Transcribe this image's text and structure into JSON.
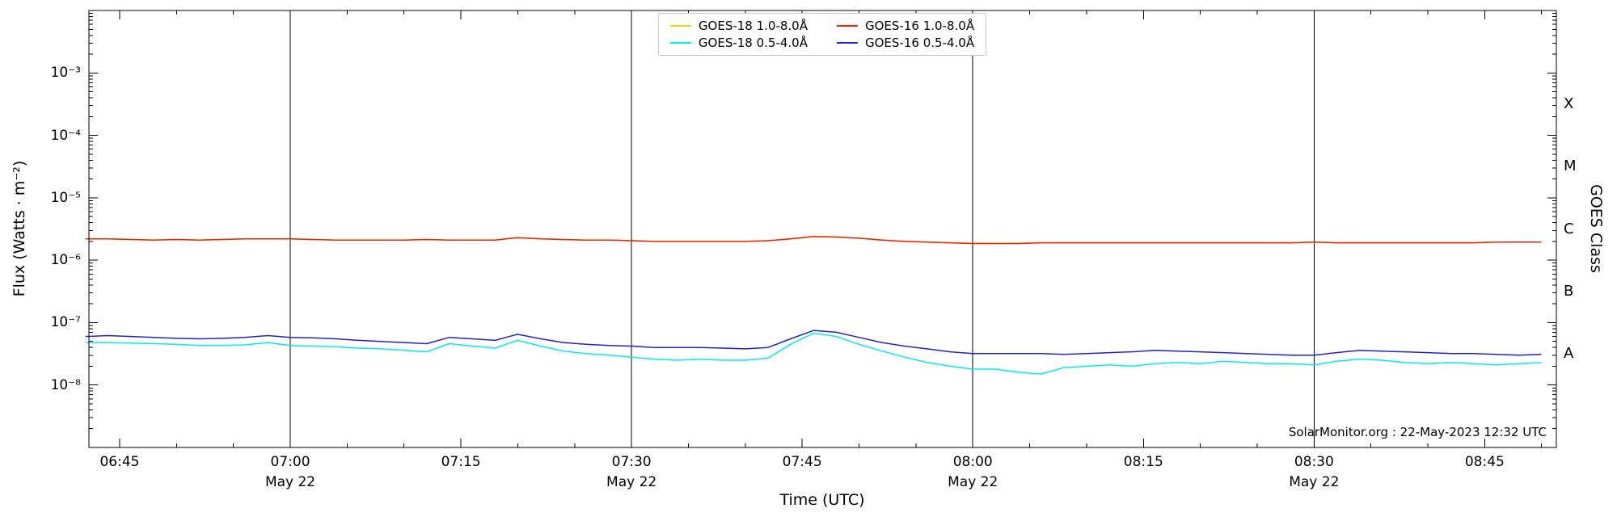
{
  "chart_data": {
    "type": "line",
    "title": "",
    "xlabel": "Time (UTC)",
    "ylabel": "Flux (Watts · m⁻²)",
    "y2label": "GOES Class",
    "annotation": "SolarMonitor.org : 22-May-2023 12:32 UTC",
    "background": "#ffffff",
    "axis_color": "#000000",
    "grid": "vertical-date-lines-only",
    "legend_position": "top-center",
    "xlim": [
      6.705,
      8.855
    ],
    "ylim_log10": [
      -9,
      -2
    ],
    "x_major_ticks": [
      {
        "hour": 6.75,
        "label": "06:45"
      },
      {
        "hour": 7.0,
        "label": "07:00"
      },
      {
        "hour": 7.25,
        "label": "07:15"
      },
      {
        "hour": 7.5,
        "label": "07:30"
      },
      {
        "hour": 7.75,
        "label": "07:45"
      },
      {
        "hour": 8.0,
        "label": "08:00"
      },
      {
        "hour": 8.25,
        "label": "08:15"
      },
      {
        "hour": 8.5,
        "label": "08:30"
      },
      {
        "hour": 8.75,
        "label": "08:45"
      }
    ],
    "date_markers": [
      {
        "hour": 7.0,
        "label": "May 22"
      },
      {
        "hour": 7.5,
        "label": "May 22"
      },
      {
        "hour": 8.0,
        "label": "May 22"
      },
      {
        "hour": 8.5,
        "label": "May 22"
      }
    ],
    "y_ticks": [
      {
        "exp": -3,
        "label": "10⁻³"
      },
      {
        "exp": -4,
        "label": "10⁻⁴"
      },
      {
        "exp": -5,
        "label": "10⁻⁵"
      },
      {
        "exp": -6,
        "label": "10⁻⁶"
      },
      {
        "exp": -7,
        "label": "10⁻⁷"
      },
      {
        "exp": -8,
        "label": "10⁻⁸"
      }
    ],
    "goes_classes": [
      {
        "label": "X",
        "log_center": -3.5
      },
      {
        "label": "M",
        "log_center": -4.5
      },
      {
        "label": "C",
        "log_center": -5.5
      },
      {
        "label": "B",
        "log_center": -6.5
      },
      {
        "label": "A",
        "log_center": -7.5
      }
    ],
    "x": [
      6.7,
      6.733,
      6.767,
      6.8,
      6.833,
      6.867,
      6.9,
      6.933,
      6.967,
      7.0,
      7.033,
      7.067,
      7.1,
      7.133,
      7.167,
      7.2,
      7.233,
      7.267,
      7.3,
      7.333,
      7.367,
      7.4,
      7.433,
      7.467,
      7.5,
      7.533,
      7.567,
      7.6,
      7.633,
      7.667,
      7.7,
      7.733,
      7.767,
      7.8,
      7.833,
      7.867,
      7.9,
      7.933,
      7.967,
      8.0,
      8.033,
      8.067,
      8.1,
      8.133,
      8.167,
      8.2,
      8.233,
      8.267,
      8.3,
      8.333,
      8.367,
      8.4,
      8.433,
      8.467,
      8.5,
      8.533,
      8.567,
      8.6,
      8.633,
      8.667,
      8.7,
      8.733,
      8.767,
      8.8,
      8.833
    ],
    "series": [
      {
        "name": "GOES-18 1.0-8.0Å",
        "color": "#ffcc00",
        "note": "occluded by GOES-16 1.0-8.0Å trace",
        "values": [
          2.2e-06,
          2.2e-06,
          2.15e-06,
          2.1e-06,
          2.15e-06,
          2.1e-06,
          2.15e-06,
          2.2e-06,
          2.2e-06,
          2.2e-06,
          2.15e-06,
          2.1e-06,
          2.1e-06,
          2.1e-06,
          2.1e-06,
          2.15e-06,
          2.1e-06,
          2.1e-06,
          2.1e-06,
          2.3e-06,
          2.2e-06,
          2.15e-06,
          2.1e-06,
          2.1e-06,
          2.05e-06,
          2e-06,
          2e-06,
          2e-06,
          2e-06,
          2e-06,
          2.05e-06,
          2.2e-06,
          2.4e-06,
          2.35e-06,
          2.25e-06,
          2.1e-06,
          2e-06,
          1.95e-06,
          1.9e-06,
          1.85e-06,
          1.85e-06,
          1.85e-06,
          1.9e-06,
          1.9e-06,
          1.9e-06,
          1.9e-06,
          1.9e-06,
          1.9e-06,
          1.9e-06,
          1.9e-06,
          1.9e-06,
          1.9e-06,
          1.9e-06,
          1.9e-06,
          1.95e-06,
          1.9e-06,
          1.9e-06,
          1.9e-06,
          1.9e-06,
          1.9e-06,
          1.9e-06,
          1.9e-06,
          1.95e-06,
          1.95e-06,
          1.95e-06
        ]
      },
      {
        "name": "GOES-18 0.5-4.0Å",
        "color": "#00eeee",
        "values": [
          4.8e-08,
          4.8e-08,
          4.7e-08,
          4.6e-08,
          4.5e-08,
          4.3e-08,
          4.3e-08,
          4.4e-08,
          4.8e-08,
          4.3e-08,
          4.2e-08,
          4.1e-08,
          3.9e-08,
          3.8e-08,
          3.6e-08,
          3.4e-08,
          4.6e-08,
          4.2e-08,
          3.9e-08,
          5.2e-08,
          4.2e-08,
          3.5e-08,
          3.2e-08,
          3e-08,
          2.8e-08,
          2.6e-08,
          2.5e-08,
          2.6e-08,
          2.5e-08,
          2.5e-08,
          2.7e-08,
          4.5e-08,
          6.8e-08,
          6e-08,
          4.5e-08,
          3.5e-08,
          2.8e-08,
          2.3e-08,
          2e-08,
          1.8e-08,
          1.8e-08,
          1.6e-08,
          1.5e-08,
          1.9e-08,
          2e-08,
          2.1e-08,
          2e-08,
          2.2e-08,
          2.3e-08,
          2.2e-08,
          2.4e-08,
          2.3e-08,
          2.2e-08,
          2.2e-08,
          2.1e-08,
          2.4e-08,
          2.6e-08,
          2.5e-08,
          2.3e-08,
          2.2e-08,
          2.3e-08,
          2.2e-08,
          2.1e-08,
          2.2e-08,
          2.3e-08
        ]
      },
      {
        "name": "GOES-16 1.0-8.0Å",
        "color": "#f22000",
        "values": [
          2.2e-06,
          2.2e-06,
          2.15e-06,
          2.1e-06,
          2.15e-06,
          2.1e-06,
          2.15e-06,
          2.2e-06,
          2.2e-06,
          2.2e-06,
          2.15e-06,
          2.1e-06,
          2.1e-06,
          2.1e-06,
          2.1e-06,
          2.15e-06,
          2.1e-06,
          2.1e-06,
          2.1e-06,
          2.3e-06,
          2.2e-06,
          2.15e-06,
          2.1e-06,
          2.1e-06,
          2.05e-06,
          2e-06,
          2e-06,
          2e-06,
          2e-06,
          2e-06,
          2.05e-06,
          2.2e-06,
          2.4e-06,
          2.35e-06,
          2.25e-06,
          2.1e-06,
          2e-06,
          1.95e-06,
          1.9e-06,
          1.85e-06,
          1.85e-06,
          1.85e-06,
          1.9e-06,
          1.9e-06,
          1.9e-06,
          1.9e-06,
          1.9e-06,
          1.9e-06,
          1.9e-06,
          1.9e-06,
          1.9e-06,
          1.9e-06,
          1.9e-06,
          1.9e-06,
          1.95e-06,
          1.9e-06,
          1.9e-06,
          1.9e-06,
          1.9e-06,
          1.9e-06,
          1.9e-06,
          1.9e-06,
          1.95e-06,
          1.95e-06,
          1.95e-06
        ]
      },
      {
        "name": "GOES-16 0.5-4.0Å",
        "color": "#2222cc",
        "values": [
          6e-08,
          6.2e-08,
          6e-08,
          5.8e-08,
          5.6e-08,
          5.5e-08,
          5.6e-08,
          5.8e-08,
          6.2e-08,
          5.8e-08,
          5.7e-08,
          5.5e-08,
          5.2e-08,
          5e-08,
          4.8e-08,
          4.6e-08,
          5.8e-08,
          5.5e-08,
          5.2e-08,
          6.5e-08,
          5.5e-08,
          4.8e-08,
          4.5e-08,
          4.3e-08,
          4.2e-08,
          4e-08,
          4e-08,
          4e-08,
          3.9e-08,
          3.8e-08,
          4e-08,
          5.5e-08,
          7.5e-08,
          7e-08,
          5.8e-08,
          4.8e-08,
          4.2e-08,
          3.8e-08,
          3.4e-08,
          3.2e-08,
          3.2e-08,
          3.2e-08,
          3.2e-08,
          3.1e-08,
          3.2e-08,
          3.3e-08,
          3.4e-08,
          3.6e-08,
          3.5e-08,
          3.4e-08,
          3.3e-08,
          3.2e-08,
          3.1e-08,
          3e-08,
          3e-08,
          3.3e-08,
          3.6e-08,
          3.5e-08,
          3.4e-08,
          3.3e-08,
          3.2e-08,
          3.2e-08,
          3.1e-08,
          3e-08,
          3.1e-08
        ]
      }
    ]
  }
}
